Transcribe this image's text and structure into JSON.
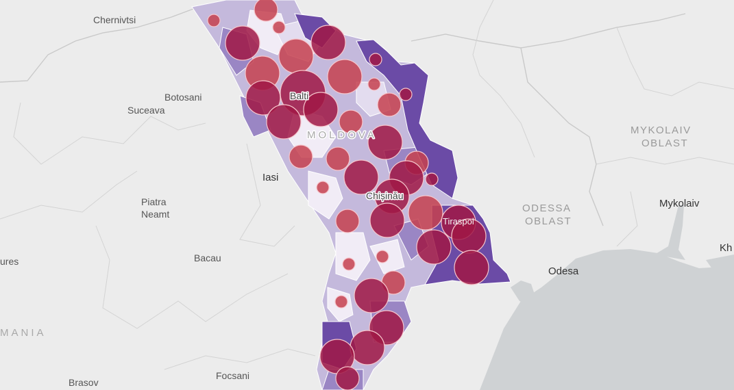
{
  "map": {
    "labels": {
      "chernivtsi": "Chernivtsi",
      "botosani": "Botosani",
      "suceava": "Suceava",
      "iasi": "Iasi",
      "piatra": "Piatra",
      "neamt": "Neamt",
      "bacau": "Bacau",
      "ures": "ures",
      "mania": "MANIA",
      "brasov": "Brasov",
      "focsani": "Focsani",
      "mykolaiv_oblast_1": "MYKOLAIV",
      "mykolaiv_oblast_2": "OBLAST",
      "mykolaiv": "Mykolaiv",
      "odessa_oblast_1": "ODESSA",
      "odessa_oblast_2": "OBLAST",
      "odesa": "Odesa",
      "kh": "Kh",
      "moldova": "MOLDOVA",
      "balti": "Balti",
      "chisinau": "Chișinău",
      "tiraspol": "Tiraspol"
    },
    "colors": {
      "background": "#ececec",
      "sea": "#cfd2d4",
      "choropleth_low": "#f1ecf6",
      "choropleth_mid": "#c4b9dc",
      "choropleth_high": "#9a86c4",
      "choropleth_max": "#6b4ba6",
      "bubble_light": "#c6414f",
      "bubble_dark": "#a01845"
    }
  }
}
